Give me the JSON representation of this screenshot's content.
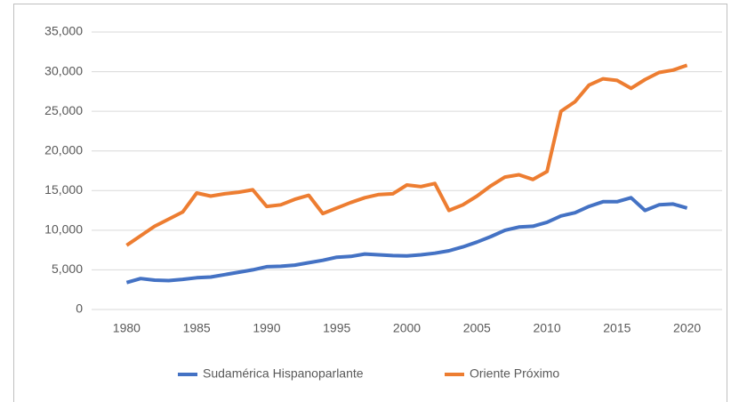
{
  "chart_data": {
    "type": "line",
    "x": [
      1980,
      1981,
      1982,
      1983,
      1984,
      1985,
      1986,
      1987,
      1988,
      1989,
      1990,
      1991,
      1992,
      1993,
      1994,
      1995,
      1996,
      1997,
      1998,
      1999,
      2000,
      2001,
      2002,
      2003,
      2004,
      2005,
      2006,
      2007,
      2008,
      2009,
      2010,
      2011,
      2012,
      2013,
      2014,
      2015,
      2016,
      2017,
      2018,
      2019,
      2020
    ],
    "series": [
      {
        "name": "Sudamérica Hispanoparlante",
        "color": "#4472c4",
        "values": [
          3400,
          3900,
          3700,
          3650,
          3800,
          4000,
          4100,
          4400,
          4700,
          5000,
          5400,
          5450,
          5600,
          5900,
          6200,
          6600,
          6700,
          7000,
          6900,
          6800,
          6750,
          6900,
          7100,
          7400,
          7900,
          8500,
          9200,
          10000,
          10400,
          10500,
          11000,
          11800,
          12200,
          13000,
          13600,
          13600,
          14100,
          12500,
          13200,
          13300,
          12800
        ]
      },
      {
        "name": "Oriente Próximo",
        "color": "#ed7d31",
        "values": [
          8100,
          9300,
          10500,
          11400,
          12300,
          14700,
          14300,
          14600,
          14800,
          15100,
          13000,
          13200,
          13900,
          14400,
          12100,
          12800,
          13500,
          14100,
          14500,
          14600,
          15700,
          15500,
          15900,
          12500,
          13200,
          14300,
          15600,
          16700,
          17000,
          16400,
          17400,
          25000,
          26200,
          28300,
          29100,
          28900,
          27900,
          29000,
          29900,
          30200,
          30800
        ]
      }
    ],
    "xlim": [
      1977.5,
      2022.5
    ],
    "xticks": [
      1980,
      1985,
      1990,
      1995,
      2000,
      2005,
      2010,
      2015,
      2020
    ],
    "ylim": [
      0,
      35000
    ],
    "yticks": [
      0,
      {
        "value": 5000,
        "label": "5,000"
      },
      {
        "value": 10000,
        "label": "10,000"
      },
      {
        "value": 15000,
        "label": "15,000"
      },
      {
        "value": 20000,
        "label": "20,000"
      },
      {
        "value": 25000,
        "label": "25,000"
      },
      {
        "value": 30000,
        "label": "30,000"
      },
      {
        "value": 35000,
        "label": "35,000"
      }
    ],
    "grid": true,
    "legend": "bottom"
  }
}
